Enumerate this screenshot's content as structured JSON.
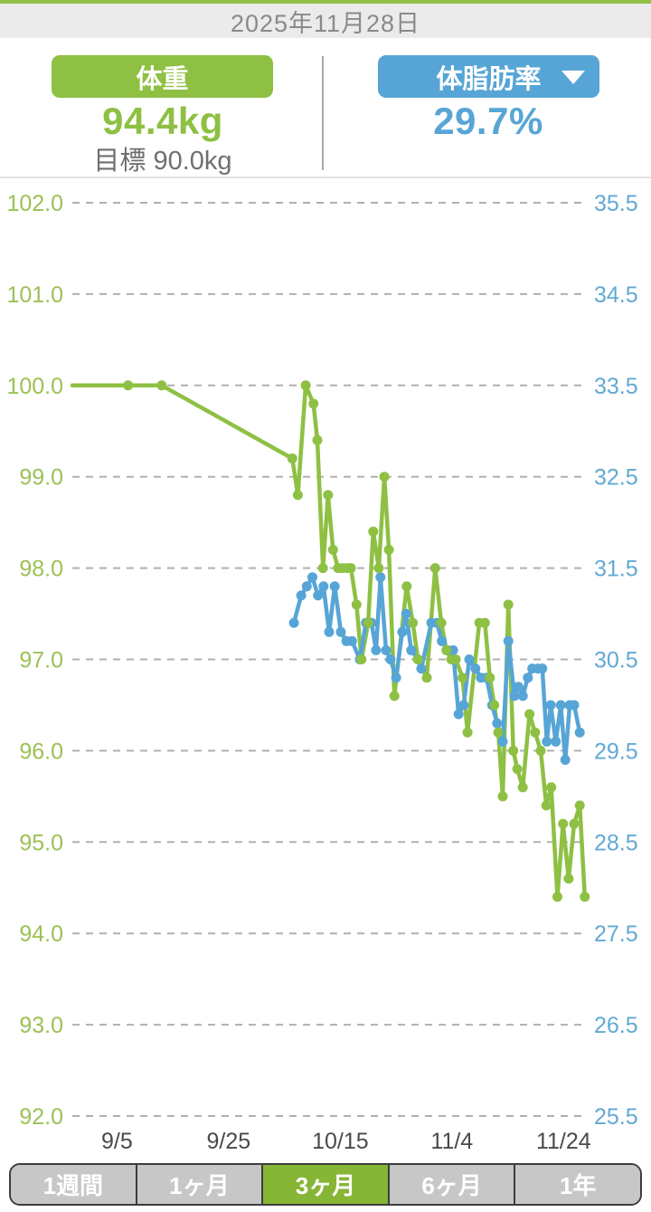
{
  "header": {
    "date": "2025年11月28日"
  },
  "metrics": {
    "weight": {
      "label": "体重",
      "value": "94.4kg",
      "goal": "目標 90.0kg"
    },
    "body_fat": {
      "label": "体脂肪率",
      "value": "29.7%",
      "dropdown_icon": "chevron-down-icon"
    }
  },
  "colors": {
    "green": "#8ec043",
    "green_label": "#9cc155",
    "green_selected": "#87b536",
    "blue": "#57a5d6",
    "blue_label": "#62a9d4",
    "grid": "#b0b0b0",
    "xtick": "#4a4a4a",
    "tab_gray": "#c7c7c7",
    "tab_border": "#3d3d3d"
  },
  "tabs": {
    "items": [
      "1週間",
      "1ヶ月",
      "3ヶ月",
      "6ヶ月",
      "1年"
    ],
    "selected": "3ヶ月"
  },
  "chart_data": {
    "type": "line",
    "x_unit": "day_offset_from_2025-08-28",
    "x_range": [
      0,
      92
    ],
    "x_ticks": [
      {
        "d": 8,
        "label": "9/5"
      },
      {
        "d": 28,
        "label": "9/25"
      },
      {
        "d": 48,
        "label": "10/15"
      },
      {
        "d": 68,
        "label": "11/4"
      },
      {
        "d": 88,
        "label": "11/24"
      }
    ],
    "y_left": {
      "min": 92.0,
      "max": 102.0,
      "step": 1.0,
      "ticks": [
        "102.0",
        "101.0",
        "100.0",
        "99.0",
        "98.0",
        "97.0",
        "96.0",
        "95.0",
        "94.0",
        "93.0",
        "92.0"
      ]
    },
    "y_right": {
      "min": 25.5,
      "max": 35.5,
      "step": 1.0,
      "ticks": [
        "35.5",
        "34.5",
        "33.5",
        "32.5",
        "31.5",
        "30.5",
        "29.5",
        "28.5",
        "27.5",
        "26.5",
        "25.5"
      ]
    },
    "grid": "dashed",
    "series": [
      {
        "name": "体重",
        "axis": "left",
        "color": "#8ec043",
        "points": [
          [
            0,
            100,
            0
          ],
          [
            10,
            100
          ],
          [
            16,
            100
          ],
          [
            39.4,
            99.2
          ],
          [
            40.4,
            98.8
          ],
          [
            41.8,
            100
          ],
          [
            43.2,
            99.8
          ],
          [
            43.9,
            99.4
          ],
          [
            44.9,
            98
          ],
          [
            45.8,
            98.8
          ],
          [
            46.7,
            98.2
          ],
          [
            47.6,
            98
          ],
          [
            48.4,
            98
          ],
          [
            49.2,
            98
          ],
          [
            49.9,
            98
          ],
          [
            50.9,
            97.6
          ],
          [
            51.8,
            97
          ],
          [
            53,
            97.4
          ],
          [
            53.9,
            98.4
          ],
          [
            54.9,
            98
          ],
          [
            55.9,
            99
          ],
          [
            56.7,
            98.2
          ],
          [
            57.7,
            96.6
          ],
          [
            59.9,
            97.8
          ],
          [
            61,
            97.4
          ],
          [
            61.9,
            97
          ],
          [
            63.5,
            96.8
          ],
          [
            65,
            98
          ],
          [
            66.1,
            97.4
          ],
          [
            67,
            97.1
          ],
          [
            67.9,
            97
          ],
          [
            68.7,
            97
          ],
          [
            69.9,
            96.8
          ],
          [
            70.8,
            96.2
          ],
          [
            72.9,
            97.4
          ],
          [
            73.9,
            97.4
          ],
          [
            74.8,
            96.8
          ],
          [
            75.6,
            96.5
          ],
          [
            76.3,
            96.2
          ],
          [
            77.1,
            95.5
          ],
          [
            78.1,
            97.6
          ],
          [
            79,
            96
          ],
          [
            79.7,
            95.8
          ],
          [
            80.7,
            95.6
          ],
          [
            81.9,
            96.4
          ],
          [
            82.9,
            96.2
          ],
          [
            83.9,
            96
          ],
          [
            84.9,
            95.4
          ],
          [
            85.8,
            95.6
          ],
          [
            86.9,
            94.4
          ],
          [
            87.9,
            95.2
          ],
          [
            88.9,
            94.6
          ],
          [
            89.9,
            95.2
          ],
          [
            90.9,
            95.4
          ],
          [
            91.8,
            94.4
          ]
        ]
      },
      {
        "name": "体脂肪率",
        "axis": "right",
        "color": "#57a5d6",
        "points": [
          [
            39.7,
            30.9
          ],
          [
            41,
            31.2
          ],
          [
            42,
            31.3
          ],
          [
            43,
            31.4
          ],
          [
            44,
            31.2
          ],
          [
            45,
            31.3
          ],
          [
            46,
            30.8
          ],
          [
            47,
            31.3
          ],
          [
            48.1,
            30.8
          ],
          [
            49.1,
            30.7
          ],
          [
            50.1,
            30.7
          ],
          [
            51.5,
            30.5
          ],
          [
            52.6,
            30.9
          ],
          [
            53.6,
            30.9
          ],
          [
            54.4,
            30.6
          ],
          [
            55.2,
            31.4
          ],
          [
            56.2,
            30.6
          ],
          [
            57,
            30.5
          ],
          [
            58,
            30.3
          ],
          [
            59.1,
            30.8
          ],
          [
            59.8,
            31
          ],
          [
            60.7,
            30.6
          ],
          [
            61.9,
            30.5
          ],
          [
            62.5,
            30.4
          ],
          [
            64.3,
            30.9
          ],
          [
            65.3,
            30.9
          ],
          [
            66.2,
            30.7
          ],
          [
            67.2,
            30.6
          ],
          [
            68.2,
            30.6
          ],
          [
            69.2,
            29.9
          ],
          [
            70.1,
            30
          ],
          [
            71.1,
            30.5
          ],
          [
            72.2,
            30.4
          ],
          [
            73.2,
            30.3
          ],
          [
            74.2,
            30.3
          ],
          [
            75.2,
            30
          ],
          [
            76.1,
            29.8
          ],
          [
            77.1,
            29.6
          ],
          [
            78.1,
            30.7
          ],
          [
            79.2,
            30.1
          ],
          [
            79.9,
            30.2
          ],
          [
            80.7,
            30.1
          ],
          [
            81.6,
            30.3
          ],
          [
            82.4,
            30.4
          ],
          [
            83.4,
            30.4
          ],
          [
            84.2,
            30.4
          ],
          [
            85,
            29.6
          ],
          [
            85.7,
            30
          ],
          [
            86.6,
            29.6
          ],
          [
            87.5,
            30
          ],
          [
            88.3,
            29.4
          ],
          [
            89.1,
            30
          ],
          [
            89.9,
            30
          ],
          [
            90.9,
            29.7
          ]
        ]
      }
    ]
  }
}
